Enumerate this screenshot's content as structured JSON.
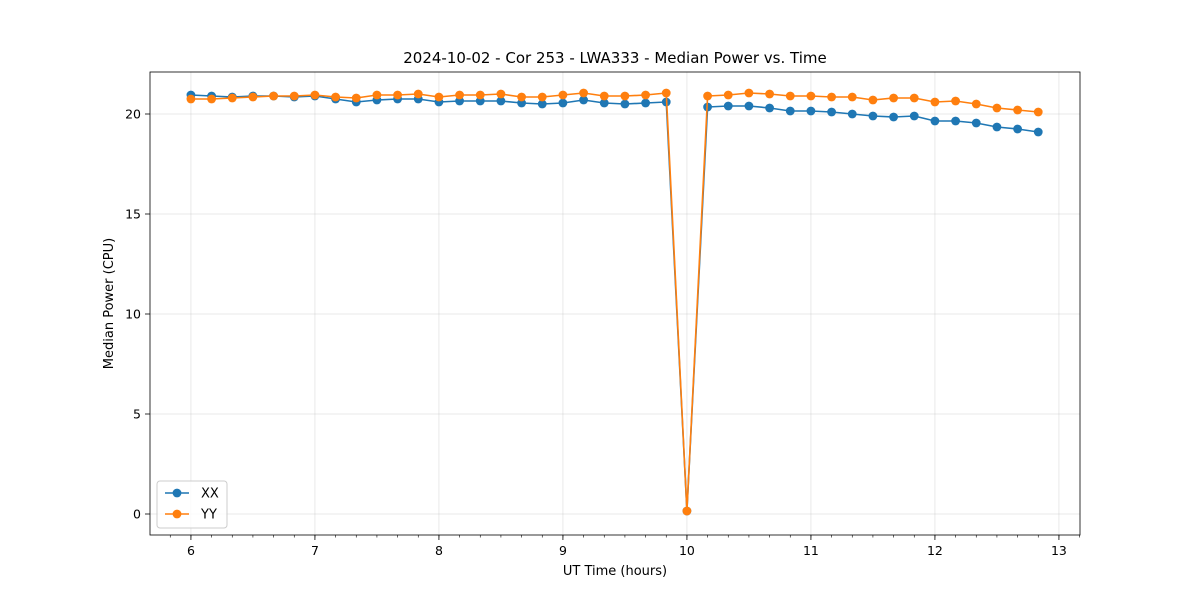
{
  "chart_data": {
    "type": "line",
    "title": "2024-10-02 - Cor 253 - LWA333 - Median Power vs. Time",
    "xlabel": "UT Time (hours)",
    "ylabel": "Median Power (CPU)",
    "xlim": [
      5.67,
      13.17
    ],
    "ylim": [
      -1.05,
      22.1
    ],
    "xticks": [
      6,
      7,
      8,
      9,
      10,
      11,
      12,
      13
    ],
    "yticks": [
      0,
      5,
      10,
      15,
      20
    ],
    "grid": true,
    "legend_position": "lower-left",
    "x": [
      6.0,
      6.1667,
      6.3333,
      6.5,
      6.6667,
      6.8333,
      7.0,
      7.1667,
      7.3333,
      7.5,
      7.6667,
      7.8333,
      8.0,
      8.1667,
      8.3333,
      8.5,
      8.6667,
      8.8333,
      9.0,
      9.1667,
      9.3333,
      9.5,
      9.6667,
      9.8333,
      10.0,
      10.1667,
      10.3333,
      10.5,
      10.6667,
      10.8333,
      11.0,
      11.1667,
      11.3333,
      11.5,
      11.6667,
      11.8333,
      12.0,
      12.1667,
      12.3333,
      12.5,
      12.6667,
      12.8333
    ],
    "series": [
      {
        "name": "XX",
        "color": "#1f77b4",
        "values": [
          20.95,
          20.9,
          20.85,
          20.9,
          20.9,
          20.85,
          20.9,
          20.75,
          20.6,
          20.7,
          20.75,
          20.75,
          20.6,
          20.65,
          20.65,
          20.65,
          20.55,
          20.5,
          20.55,
          20.7,
          20.55,
          20.5,
          20.55,
          20.6,
          0.15,
          20.35,
          20.4,
          20.4,
          20.3,
          20.15,
          20.15,
          20.1,
          20.0,
          19.9,
          19.85,
          19.9,
          19.65,
          19.65,
          19.55,
          19.35,
          19.25,
          19.1
        ]
      },
      {
        "name": "YY",
        "color": "#ff7f0e",
        "values": [
          20.75,
          20.75,
          20.8,
          20.85,
          20.9,
          20.9,
          20.95,
          20.85,
          20.8,
          20.95,
          20.95,
          21.0,
          20.85,
          20.95,
          20.95,
          21.0,
          20.85,
          20.85,
          20.95,
          21.05,
          20.9,
          20.9,
          20.95,
          21.05,
          0.15,
          20.9,
          20.95,
          21.05,
          21.0,
          20.9,
          20.9,
          20.85,
          20.85,
          20.7,
          20.8,
          20.8,
          20.6,
          20.65,
          20.5,
          20.3,
          20.2,
          20.1
        ]
      }
    ]
  }
}
